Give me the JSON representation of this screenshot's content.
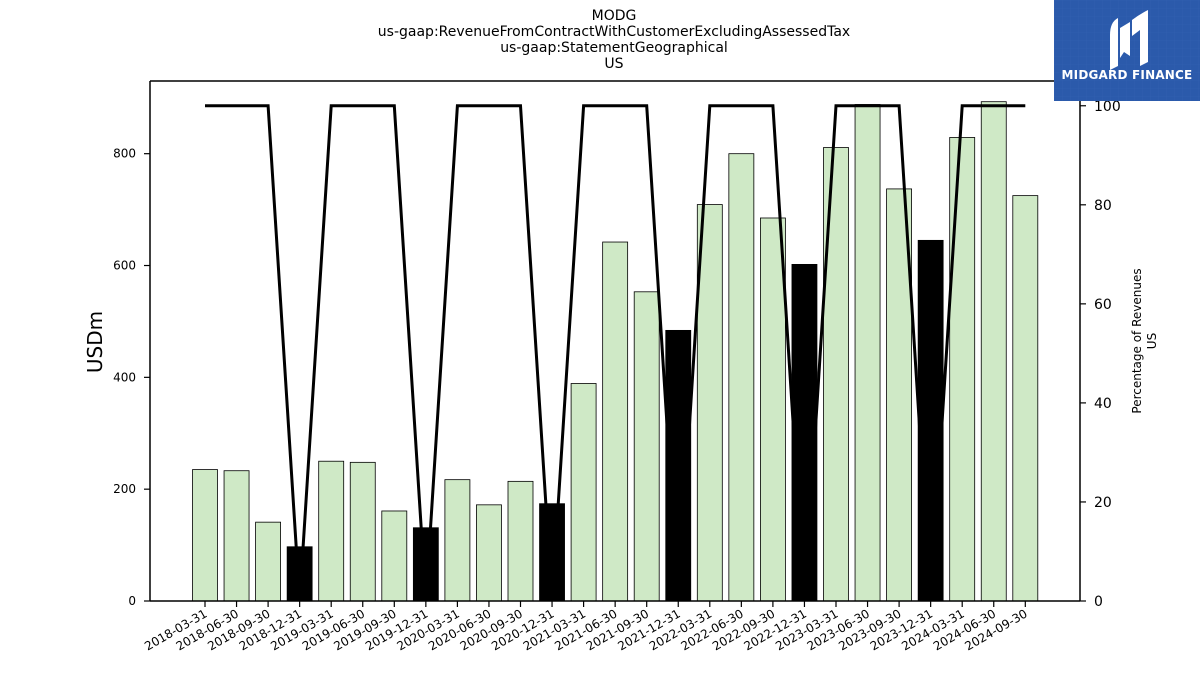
{
  "chart_data": {
    "type": "bar",
    "title_lines": [
      "MODG",
      "us-gaap:RevenueFromContractWithCustomerExcludingAssessedTax",
      "us-gaap:StatementGeographical",
      "US"
    ],
    "ylabel": "USDm",
    "ylabel_right_lines": [
      "Percentage of Revenues",
      "US"
    ],
    "ylim": [
      0,
      930
    ],
    "ylim_right": [
      0,
      105
    ],
    "yticks": [
      0,
      200,
      400,
      600,
      800
    ],
    "yticks_right": [
      0,
      20,
      40,
      60,
      80,
      100
    ],
    "categories": [
      "2018-03-31",
      "2018-06-30",
      "2018-09-30",
      "2018-12-31",
      "2019-03-31",
      "2019-06-30",
      "2019-09-30",
      "2019-12-31",
      "2020-03-31",
      "2020-06-30",
      "2020-09-30",
      "2020-12-31",
      "2021-03-31",
      "2021-06-30",
      "2021-09-30",
      "2021-12-31",
      "2022-03-31",
      "2022-06-30",
      "2022-09-30",
      "2022-12-31",
      "2023-03-31",
      "2023-06-30",
      "2023-09-30",
      "2023-12-31",
      "2024-03-31",
      "2024-06-30",
      "2024-09-30"
    ],
    "series": [
      {
        "type": "bar",
        "values": [
          235,
          233,
          141,
          97,
          250,
          248,
          161,
          131,
          217,
          172,
          214,
          174,
          389,
          642,
          553,
          484,
          709,
          800,
          685,
          602,
          811,
          888,
          737,
          645,
          829,
          893,
          725
        ],
        "colors": [
          "#cfe9c6",
          "#cfe9c6",
          "#cfe9c6",
          "#000000",
          "#cfe9c6",
          "#cfe9c6",
          "#cfe9c6",
          "#000000",
          "#cfe9c6",
          "#cfe9c6",
          "#cfe9c6",
          "#000000",
          "#cfe9c6",
          "#cfe9c6",
          "#cfe9c6",
          "#000000",
          "#cfe9c6",
          "#cfe9c6",
          "#cfe9c6",
          "#000000",
          "#cfe9c6",
          "#cfe9c6",
          "#cfe9c6",
          "#000000",
          "#cfe9c6",
          "#cfe9c6",
          "#cfe9c6"
        ]
      },
      {
        "type": "line",
        "axis": "right",
        "color": "#000000",
        "values": [
          100,
          100,
          100,
          0,
          100,
          100,
          100,
          0,
          100,
          100,
          100,
          0,
          100,
          100,
          100,
          0,
          100,
          100,
          100,
          0,
          100,
          100,
          100,
          0,
          100,
          100,
          100
        ]
      }
    ],
    "grid": false
  },
  "logo": {
    "text": "MIDGARD FINANCE",
    "background": "#2b5aab",
    "icon": "midgard-mark-icon"
  }
}
